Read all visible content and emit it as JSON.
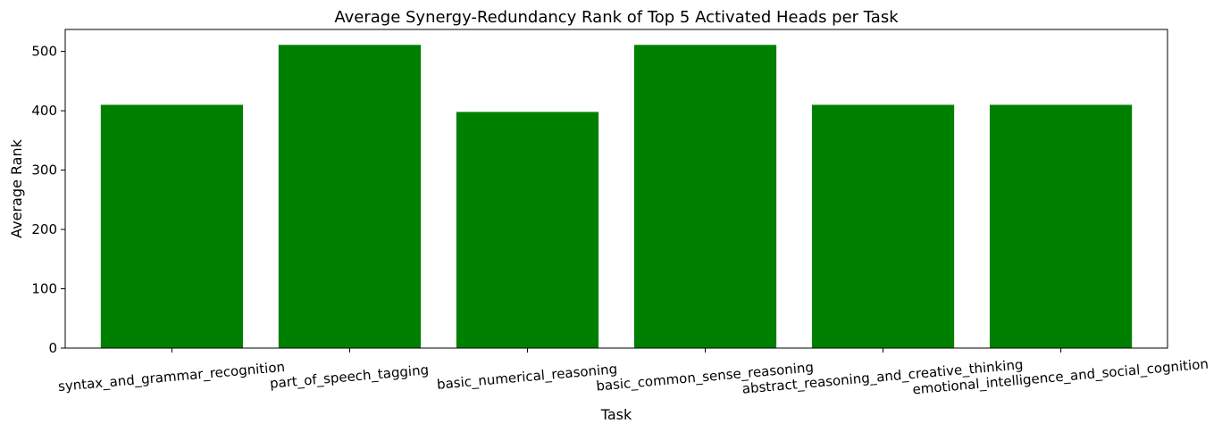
{
  "chart_data": {
    "type": "bar",
    "title": "Average Synergy-Redundancy Rank of Top 5 Activated Heads per Task",
    "xlabel": "Task",
    "ylabel": "Average Rank",
    "categories": [
      "syntax_and_grammar_recognition",
      "part_of_speech_tagging",
      "basic_numerical_reasoning",
      "basic_common_sense_reasoning",
      "abstract_reasoning_and_creative_thinking",
      "emotional_intelligence_and_social_cognition"
    ],
    "values": [
      410,
      511,
      398,
      511,
      410,
      410
    ],
    "ylim": [
      0,
      537
    ],
    "yticks": [
      0,
      100,
      200,
      300,
      400,
      500
    ],
    "bar_color": "#008000",
    "grid": false,
    "legend": "none"
  }
}
